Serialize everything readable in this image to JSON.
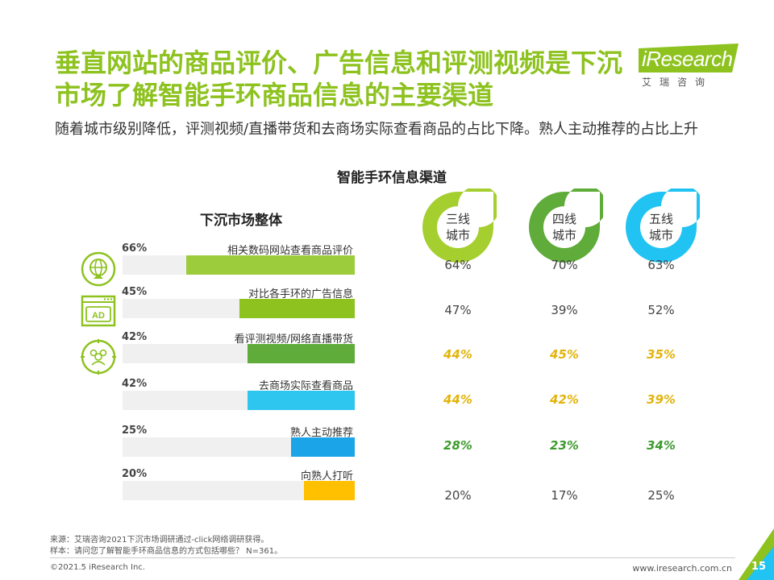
{
  "title": "垂直网站的商品评价、广告信息和评测视频是下沉市场了解智能手环商品信息的主要渠道",
  "subtitle": "随着城市级别降低，评测视频/直播带货和去商场实际查看商品的占比下降。熟人主动推荐的占比上升",
  "logo": {
    "word": "iResearch",
    "cn": "艾瑞咨询",
    "color": "#8dc21f"
  },
  "chart_data": {
    "type": "bar",
    "title": "智能手环信息渠道",
    "left_title": "下沉市场整体",
    "categories": [
      "相关数码网站查看商品评价",
      "对比各手环的广告信息",
      "看评测视频/网络直播带货",
      "去商场实际查看商品",
      "熟人主动推荐",
      "向熟人打听"
    ],
    "overall_labels": [
      "66%",
      "45%",
      "42%",
      "42%",
      "25%",
      "20%"
    ],
    "overall_values": [
      66,
      45,
      42,
      42,
      25,
      20
    ],
    "bar_colors": [
      "#9ccc3c",
      "#8dc21f",
      "#5fac3a",
      "#2ec5ef",
      "#1ca4e8",
      "#ffc000"
    ],
    "xlim": [
      0,
      100
    ],
    "series": [
      {
        "name": "三线城市",
        "line1": "三线",
        "line2": "城市",
        "color": "#a5cf2f",
        "values": [
          "64%",
          "47%",
          "44%",
          "44%",
          "28%",
          "20%"
        ]
      },
      {
        "name": "四线城市",
        "line1": "四线",
        "line2": "城市",
        "color": "#5fac3a",
        "values": [
          "70%",
          "39%",
          "45%",
          "42%",
          "23%",
          "17%"
        ]
      },
      {
        "name": "五线城市",
        "line1": "五线",
        "line2": "城市",
        "color": "#21c3f2",
        "values": [
          "63%",
          "52%",
          "35%",
          "39%",
          "34%",
          "25%"
        ]
      }
    ],
    "highlight_rows": [
      {
        "row": 2,
        "color": "#e2b40a"
      },
      {
        "row": 3,
        "color": "#e2b40a"
      },
      {
        "row": 4,
        "color": "#3e9a2f"
      }
    ],
    "icons": [
      "website-icon",
      "ad-icon",
      "people-icon"
    ]
  },
  "footer": {
    "source": "来源：艾瑞咨询2021下沉市场调研通过-click网络调研获得。",
    "sample": "样本：请问您了解智能手环商品信息的方式包括哪些？ N=361。",
    "copyright": "©2021.5 iResearch Inc.",
    "site": "www.iresearch.com.cn",
    "page": "15"
  }
}
